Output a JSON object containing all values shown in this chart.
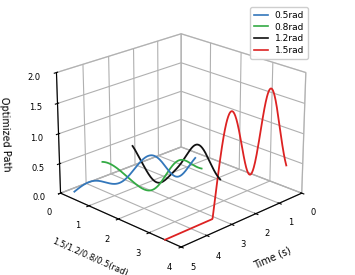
{
  "xlabel": "Time (s)",
  "ylabel": "1.5/1.2/0.8/0.5(rad)",
  "zlabel": "Optimized Path",
  "xlim": [
    0,
    5
  ],
  "ylim": [
    0,
    4
  ],
  "zlim": [
    0,
    2
  ],
  "xticks": [
    0,
    1,
    2,
    3,
    4,
    5
  ],
  "yticks": [
    0,
    1,
    2,
    3,
    4
  ],
  "zticks": [
    0,
    0.5,
    1.0,
    1.5,
    2.0
  ],
  "curves": [
    {
      "label": "0.5rad",
      "color": "#3377bb",
      "y_pos": 0.5
    },
    {
      "label": "0.8rad",
      "color": "#33aa44",
      "y_pos": 1.5
    },
    {
      "label": "1.2rad",
      "color": "#111111",
      "y_pos": 2.5
    },
    {
      "label": "1.5rad",
      "color": "#dd2222",
      "y_pos": 3.5
    }
  ],
  "elev": 22,
  "azim": 45
}
